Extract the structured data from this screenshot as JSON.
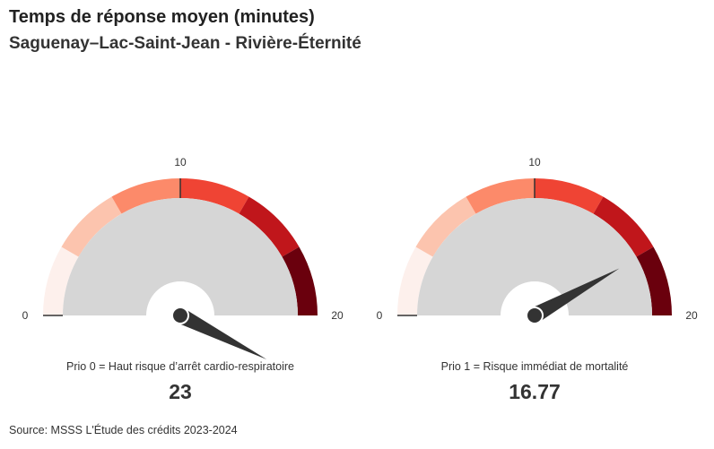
{
  "header": {
    "title": "Temps de réponse moyen (minutes)",
    "subtitle": "Saguenay–Lac-Saint-Jean - Rivière-Éternité"
  },
  "footer": {
    "source": "Source: MSSS L'Étude des crédits 2023-2024"
  },
  "colors": {
    "bands": [
      "#fdf0ec",
      "#fcc4ae",
      "#fc8a6a",
      "#ef4434",
      "#c0161b",
      "#6a000d"
    ],
    "background_arc": "#d6d6d6",
    "needle": "#333333",
    "threshold_line": "#333333"
  },
  "chart_data": [
    {
      "type": "gauge",
      "min": 0,
      "max": 20,
      "threshold": 10,
      "ticks": [
        "0",
        "10",
        "20"
      ],
      "value": 23,
      "value_label": "23",
      "caption": "Prio 0 = Haut risque d’arrêt cardio-respiratoire"
    },
    {
      "type": "gauge",
      "min": 0,
      "max": 20,
      "threshold": 10,
      "ticks": [
        "0",
        "10",
        "20"
      ],
      "value": 16.77,
      "value_label": "16.77",
      "caption": "Prio 1 = Risque immédiat de mortalité"
    }
  ]
}
